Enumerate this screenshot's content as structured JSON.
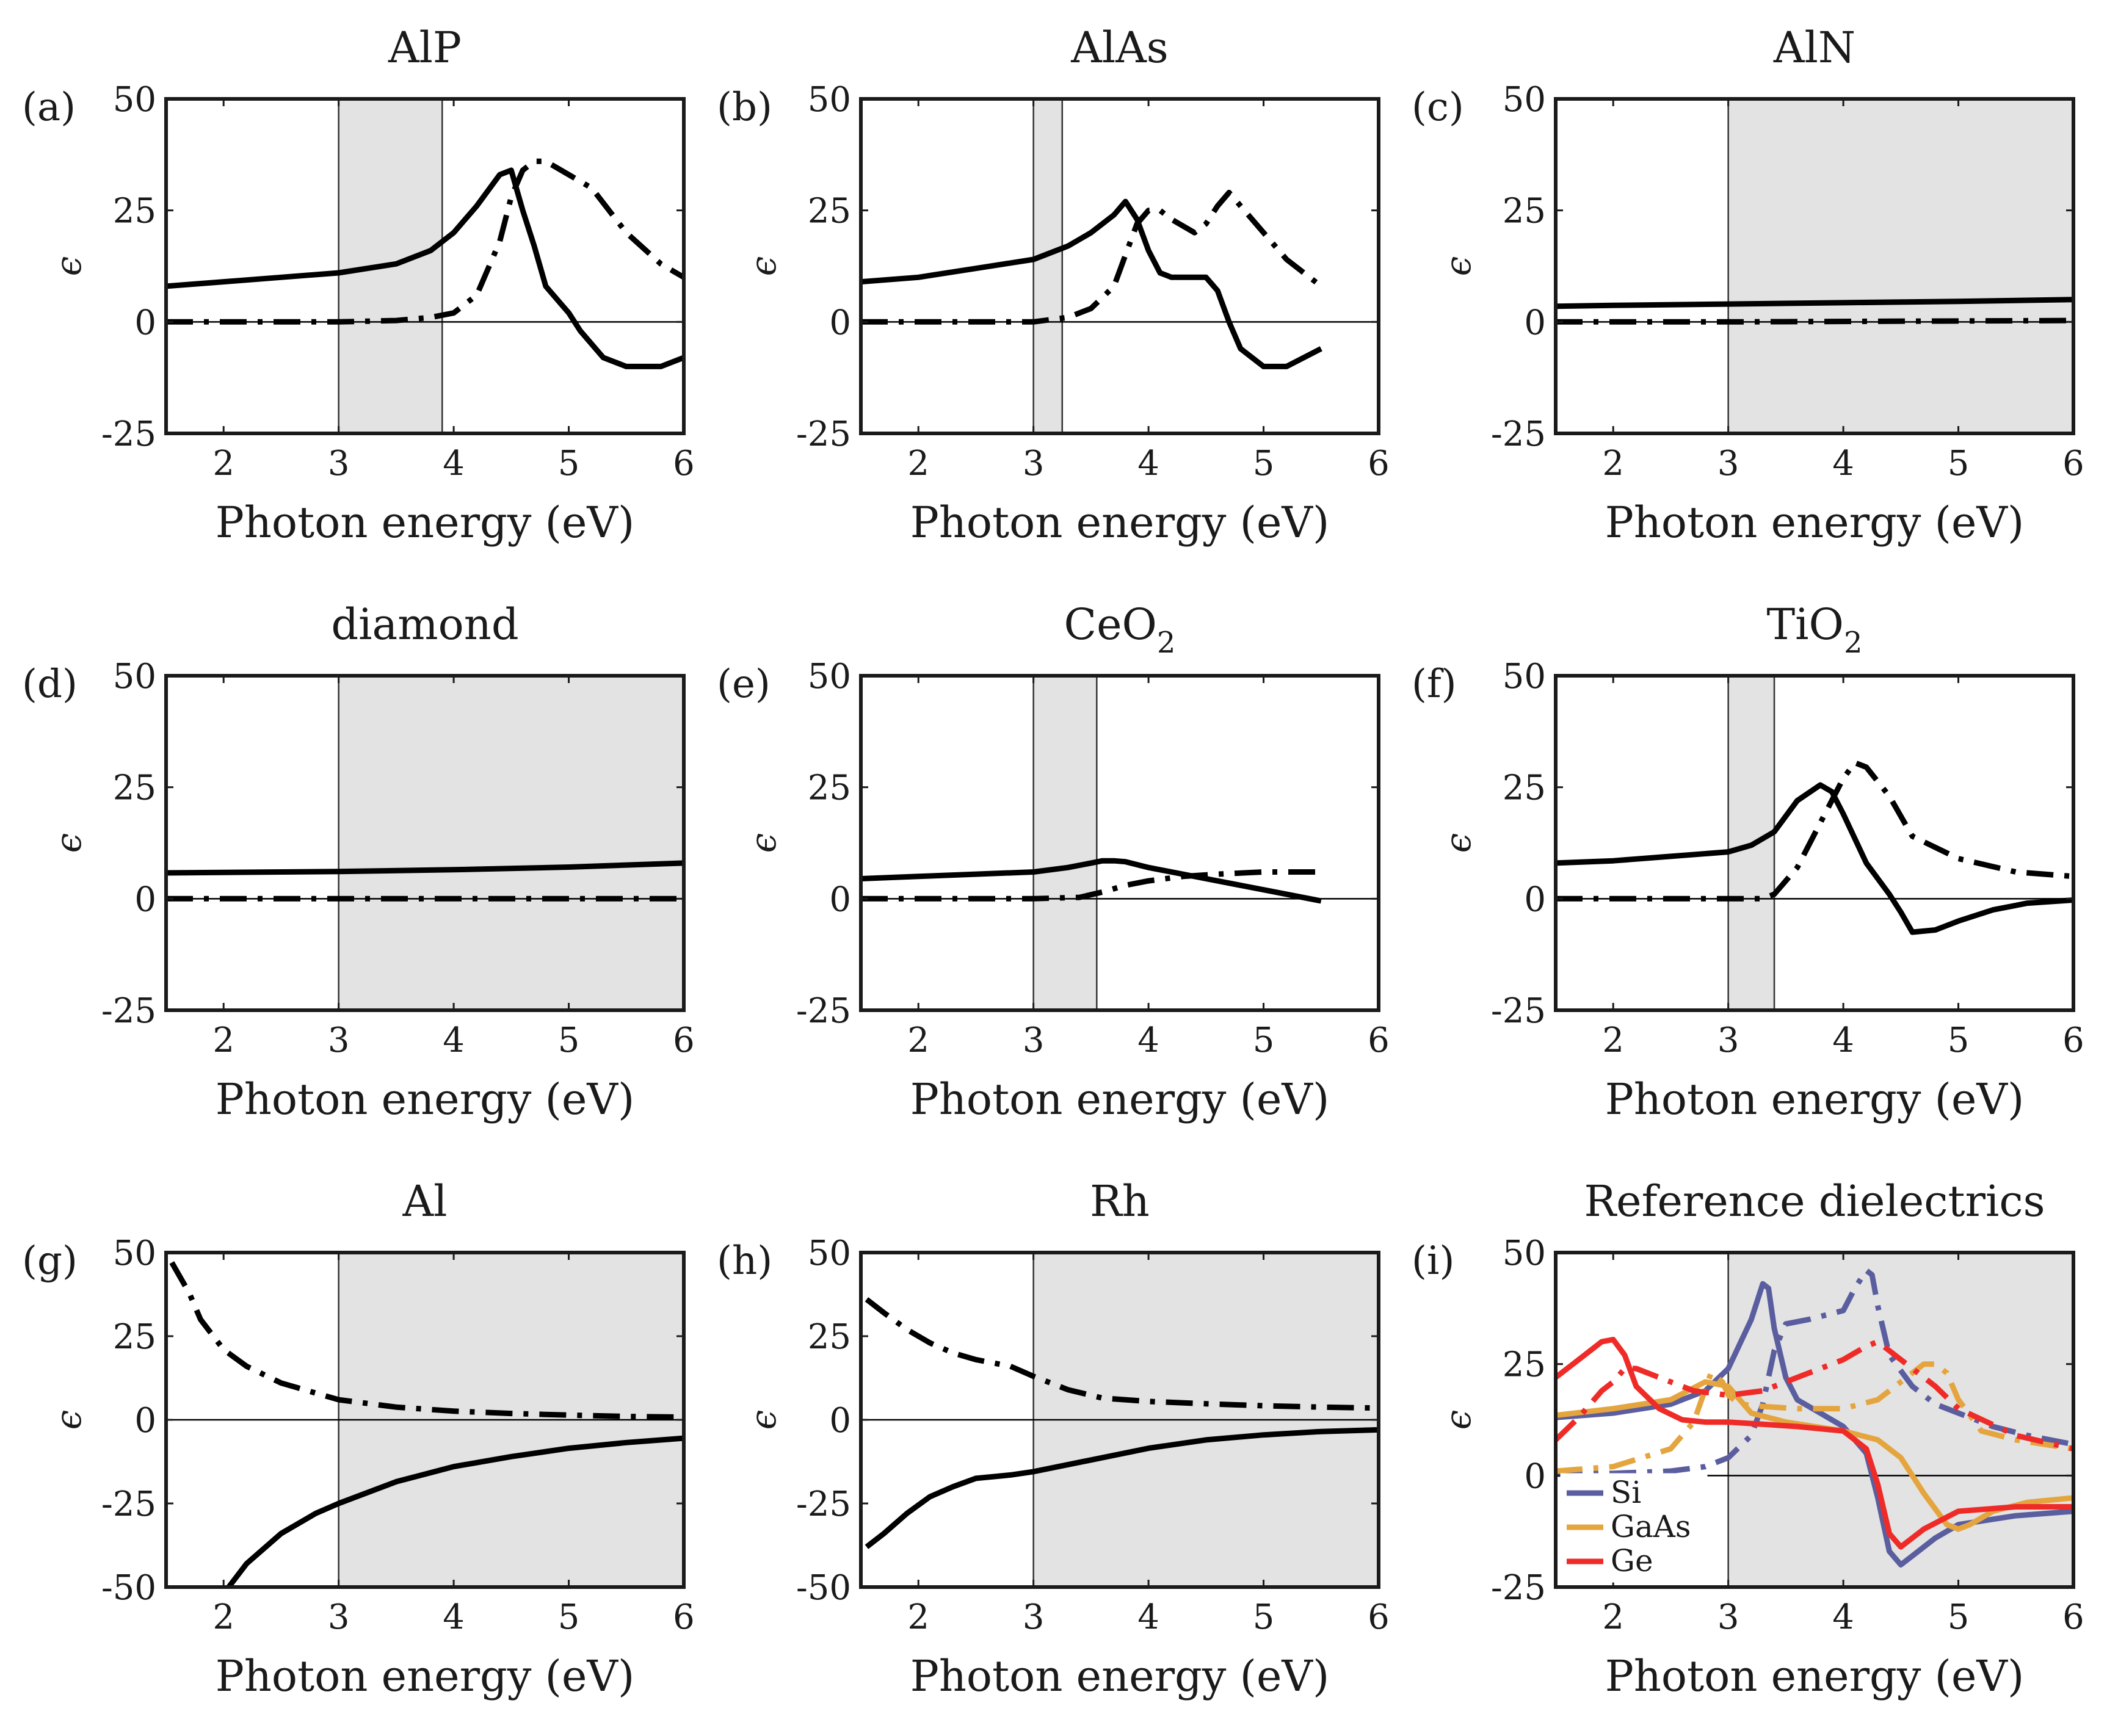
{
  "figure": {
    "x_axis_label": "Photon energy (eV)",
    "y_axis_label": "ϵ",
    "line_styles": {
      "real_part": "solid",
      "imag_part": "dash-dot"
    }
  },
  "chart_data": [
    {
      "type": "line",
      "panel_label": "(a)",
      "title": "AlP",
      "xlabel": "Photon energy (eV)",
      "ylabel": "ϵ",
      "xlim": [
        1.5,
        6
      ],
      "ylim": [
        -25,
        50
      ],
      "xticks": [
        "2",
        "3",
        "4",
        "5",
        "6"
      ],
      "yticks": [
        "-25",
        "0",
        "25",
        "50"
      ],
      "shaded": [
        3.0,
        3.9
      ],
      "series": [
        {
          "name": "real",
          "style": "solid",
          "color": "#000000",
          "x": [
            1.5,
            2.0,
            2.5,
            3.0,
            3.5,
            3.8,
            4.0,
            4.2,
            4.4,
            4.5,
            4.6,
            4.7,
            4.8,
            4.9,
            5.0,
            5.1,
            5.3,
            5.5,
            5.8,
            6.0
          ],
          "y": [
            8,
            9,
            10,
            11,
            13,
            16,
            20,
            26,
            33,
            34,
            25,
            17,
            8,
            5,
            2,
            -2,
            -8,
            -10,
            -10,
            -8
          ]
        },
        {
          "name": "imag",
          "style": "dashdot",
          "color": "#000000",
          "x": [
            1.5,
            2.0,
            2.5,
            3.0,
            3.5,
            3.8,
            4.0,
            4.2,
            4.4,
            4.5,
            4.6,
            4.7,
            4.8,
            5.0,
            5.2,
            5.5,
            5.8,
            6.0
          ],
          "y": [
            0,
            0,
            0,
            0,
            0.3,
            1,
            2,
            6,
            18,
            28,
            34,
            36,
            36,
            33,
            30,
            20,
            13,
            10
          ]
        }
      ]
    },
    {
      "type": "line",
      "panel_label": "(b)",
      "title": "AlAs",
      "xlabel": "Photon energy (eV)",
      "ylabel": "ϵ",
      "xlim": [
        1.5,
        6
      ],
      "ylim": [
        -25,
        50
      ],
      "xticks": [
        "2",
        "3",
        "4",
        "5",
        "6"
      ],
      "yticks": [
        "-25",
        "0",
        "25",
        "50"
      ],
      "shaded": [
        3.0,
        3.25
      ],
      "series": [
        {
          "name": "real",
          "style": "solid",
          "color": "#000000",
          "x": [
            1.5,
            2.0,
            2.5,
            3.0,
            3.3,
            3.5,
            3.7,
            3.8,
            3.9,
            4.0,
            4.1,
            4.2,
            4.3,
            4.4,
            4.5,
            4.6,
            4.7,
            4.8,
            5.0,
            5.2,
            5.5
          ],
          "y": [
            9,
            10,
            12,
            14,
            17,
            20,
            24,
            27,
            23,
            16,
            11,
            10,
            10,
            10,
            10,
            7,
            0,
            -6,
            -10,
            -10,
            -6
          ]
        },
        {
          "name": "imag",
          "style": "dashdot",
          "color": "#000000",
          "x": [
            1.5,
            2.0,
            2.5,
            3.0,
            3.3,
            3.5,
            3.7,
            3.8,
            3.9,
            4.0,
            4.1,
            4.2,
            4.4,
            4.5,
            4.6,
            4.7,
            4.8,
            5.0,
            5.2,
            5.5
          ],
          "y": [
            0,
            0,
            0,
            0,
            1,
            3,
            8,
            15,
            22,
            25,
            25,
            23,
            20,
            22,
            26,
            29,
            26,
            20,
            14,
            8
          ]
        }
      ]
    },
    {
      "type": "line",
      "panel_label": "(c)",
      "title": "AlN",
      "xlabel": "Photon energy (eV)",
      "ylabel": "ϵ",
      "xlim": [
        1.5,
        6
      ],
      "ylim": [
        -25,
        50
      ],
      "xticks": [
        "2",
        "3",
        "4",
        "5",
        "6"
      ],
      "yticks": [
        "-25",
        "0",
        "25",
        "50"
      ],
      "shaded": [
        3.0,
        6.0
      ],
      "series": [
        {
          "name": "real",
          "style": "solid",
          "color": "#000000",
          "x": [
            1.5,
            2.0,
            3.0,
            4.0,
            5.0,
            6.0
          ],
          "y": [
            3.5,
            3.7,
            4.0,
            4.3,
            4.6,
            5.0
          ]
        },
        {
          "name": "imag",
          "style": "dashdot",
          "color": "#000000",
          "x": [
            1.5,
            3.0,
            6.0
          ],
          "y": [
            0,
            0,
            0.3
          ]
        }
      ]
    },
    {
      "type": "line",
      "panel_label": "(d)",
      "title": "diamond",
      "xlabel": "Photon energy (eV)",
      "ylabel": "ϵ",
      "xlim": [
        1.5,
        6
      ],
      "ylim": [
        -25,
        50
      ],
      "xticks": [
        "2",
        "3",
        "4",
        "5",
        "6"
      ],
      "yticks": [
        "-25",
        "0",
        "25",
        "50"
      ],
      "shaded": [
        3.0,
        6.0
      ],
      "series": [
        {
          "name": "real",
          "style": "solid",
          "color": "#000000",
          "x": [
            1.5,
            2.0,
            3.0,
            4.0,
            5.0,
            6.0
          ],
          "y": [
            5.8,
            5.9,
            6.1,
            6.5,
            7.1,
            8.0
          ]
        },
        {
          "name": "imag",
          "style": "dashdot",
          "color": "#000000",
          "x": [
            1.5,
            3.0,
            6.0
          ],
          "y": [
            0,
            0,
            0
          ]
        }
      ]
    },
    {
      "type": "line",
      "panel_label": "(e)",
      "title": "CeO",
      "title_subscript": "2",
      "xlabel": "Photon energy (eV)",
      "ylabel": "ϵ",
      "xlim": [
        1.5,
        6
      ],
      "ylim": [
        -25,
        50
      ],
      "xticks": [
        "2",
        "3",
        "4",
        "5",
        "6"
      ],
      "yticks": [
        "-25",
        "0",
        "25",
        "50"
      ],
      "shaded": [
        3.0,
        3.55
      ],
      "series": [
        {
          "name": "real",
          "style": "solid",
          "color": "#000000",
          "x": [
            1.5,
            2.0,
            2.5,
            3.0,
            3.3,
            3.5,
            3.6,
            3.7,
            3.8,
            4.0,
            4.5,
            5.0,
            5.5
          ],
          "y": [
            4.5,
            5,
            5.5,
            6,
            7,
            8,
            8.5,
            8.5,
            8.3,
            7,
            4.5,
            2,
            -0.5
          ]
        },
        {
          "name": "imag",
          "style": "dashdot",
          "color": "#000000",
          "x": [
            1.5,
            2.0,
            3.0,
            3.4,
            3.6,
            3.8,
            4.0,
            4.3,
            4.6,
            5.0,
            5.5
          ],
          "y": [
            0,
            0,
            0,
            0.3,
            1.5,
            3,
            4,
            5,
            5.5,
            6,
            6
          ]
        }
      ]
    },
    {
      "type": "line",
      "panel_label": "(f)",
      "title": "TiO",
      "title_subscript": "2",
      "xlabel": "Photon energy (eV)",
      "ylabel": "ϵ",
      "xlim": [
        1.5,
        6
      ],
      "ylim": [
        -25,
        50
      ],
      "xticks": [
        "2",
        "3",
        "4",
        "5",
        "6"
      ],
      "yticks": [
        "-25",
        "0",
        "25",
        "50"
      ],
      "shaded": [
        3.0,
        3.4
      ],
      "series": [
        {
          "name": "real",
          "style": "solid",
          "color": "#000000",
          "x": [
            1.5,
            2.0,
            2.5,
            3.0,
            3.2,
            3.4,
            3.6,
            3.8,
            3.9,
            4.0,
            4.2,
            4.4,
            4.5,
            4.6,
            4.8,
            5.0,
            5.3,
            5.6,
            6.0
          ],
          "y": [
            8,
            8.5,
            9.5,
            10.5,
            12,
            15,
            22,
            25.5,
            24,
            19,
            8,
            1,
            -3,
            -7.5,
            -7,
            -5,
            -2.5,
            -1,
            -0.3
          ]
        },
        {
          "name": "imag",
          "style": "dashdot",
          "color": "#000000",
          "x": [
            1.5,
            2.0,
            3.0,
            3.3,
            3.4,
            3.6,
            3.8,
            4.0,
            4.1,
            4.2,
            4.4,
            4.6,
            5.0,
            5.5,
            6.0
          ],
          "y": [
            0,
            0,
            0,
            0,
            1,
            7,
            17,
            27,
            30.5,
            29.5,
            23,
            14,
            9,
            6,
            5
          ]
        }
      ]
    },
    {
      "type": "line",
      "panel_label": "(g)",
      "title": "Al",
      "xlabel": "Photon energy (eV)",
      "ylabel": "ϵ",
      "xlim": [
        1.5,
        6
      ],
      "ylim": [
        -50,
        50
      ],
      "xticks": [
        "2",
        "3",
        "4",
        "5",
        "6"
      ],
      "yticks": [
        "-50",
        "-25",
        "0",
        "25",
        "50"
      ],
      "shaded": [
        3.0,
        6.0
      ],
      "series": [
        {
          "name": "real",
          "style": "solid",
          "color": "#000000",
          "x": [
            2.0,
            2.2,
            2.5,
            2.8,
            3.0,
            3.5,
            4.0,
            4.5,
            5.0,
            5.5,
            6.0
          ],
          "y": [
            -52,
            -43,
            -34,
            -28,
            -25,
            -18.5,
            -14,
            -11,
            -8.5,
            -6.8,
            -5.5
          ]
        },
        {
          "name": "imag",
          "style": "dashdot",
          "color": "#000000",
          "x": [
            1.55,
            1.7,
            1.8,
            2.0,
            2.2,
            2.5,
            3.0,
            3.5,
            4.0,
            4.5,
            5.0,
            5.5,
            6.0
          ],
          "y": [
            47,
            38,
            30,
            21,
            16,
            11,
            6,
            3.8,
            2.6,
            1.9,
            1.4,
            1.0,
            0.8
          ]
        }
      ]
    },
    {
      "type": "line",
      "panel_label": "(h)",
      "title": "Rh",
      "xlabel": "Photon energy (eV)",
      "ylabel": "ϵ",
      "xlim": [
        1.5,
        6
      ],
      "ylim": [
        -50,
        50
      ],
      "xticks": [
        "2",
        "3",
        "4",
        "5",
        "6"
      ],
      "yticks": [
        "-50",
        "-25",
        "0",
        "25",
        "50"
      ],
      "shaded": [
        3.0,
        6.0
      ],
      "series": [
        {
          "name": "real",
          "style": "solid",
          "color": "#000000",
          "x": [
            1.55,
            1.7,
            1.9,
            2.1,
            2.3,
            2.5,
            2.8,
            3.0,
            3.5,
            4.0,
            4.5,
            5.0,
            5.5,
            6.0
          ],
          "y": [
            -38,
            -34,
            -28,
            -23,
            -20,
            -17.5,
            -16.5,
            -15.5,
            -12,
            -8.5,
            -6,
            -4.5,
            -3.5,
            -3
          ]
        },
        {
          "name": "imag",
          "style": "dashdot",
          "color": "#000000",
          "x": [
            1.55,
            1.7,
            1.9,
            2.1,
            2.3,
            2.5,
            2.8,
            3.0,
            3.3,
            3.6,
            4.0,
            4.5,
            5.0,
            5.5,
            6.0
          ],
          "y": [
            36,
            32,
            27,
            23,
            20,
            18,
            16,
            13,
            9,
            6.5,
            5.5,
            4.8,
            4.2,
            3.8,
            3.5
          ]
        }
      ]
    },
    {
      "type": "line",
      "panel_label": "(i)",
      "title": "Reference dielectrics",
      "xlabel": "Photon energy (eV)",
      "ylabel": "ϵ",
      "xlim": [
        1.5,
        6
      ],
      "ylim": [
        -25,
        50
      ],
      "xticks": [
        "2",
        "3",
        "4",
        "5",
        "6"
      ],
      "yticks": [
        "-25",
        "0",
        "25",
        "50"
      ],
      "shaded": [
        3.0,
        6.0
      ],
      "legend": [
        "Si",
        "GaAs",
        "Ge"
      ],
      "legend_position": "bottom-left",
      "series": [
        {
          "name": "Si real",
          "legend": "Si",
          "style": "solid",
          "color": "#5a5e9f",
          "x": [
            1.5,
            2.0,
            2.5,
            2.8,
            3.0,
            3.2,
            3.3,
            3.35,
            3.4,
            3.5,
            3.6,
            3.8,
            4.0,
            4.2,
            4.3,
            4.4,
            4.5,
            4.6,
            4.8,
            5.0,
            5.5,
            6.0
          ],
          "y": [
            13,
            14,
            16,
            19,
            24,
            35,
            43,
            42,
            33,
            22,
            17,
            14,
            11,
            5,
            -5,
            -17,
            -20,
            -18,
            -14,
            -11,
            -9,
            -8
          ]
        },
        {
          "name": "Si imag",
          "style": "dashdot",
          "color": "#5a5e9f",
          "x": [
            1.5,
            2.0,
            2.5,
            2.8,
            3.0,
            3.2,
            3.3,
            3.4,
            3.5,
            3.7,
            4.0,
            4.1,
            4.2,
            4.25,
            4.3,
            4.4,
            4.6,
            4.8,
            5.0,
            5.3,
            5.6,
            6.0
          ],
          "y": [
            0.3,
            0.5,
            1,
            2,
            4,
            9,
            16,
            28,
            34,
            35,
            37,
            42,
            46,
            45,
            38,
            27,
            20,
            16,
            14,
            11,
            9,
            7
          ]
        },
        {
          "name": "GaAs real",
          "legend": "GaAs",
          "style": "solid",
          "color": "#e5a53e",
          "x": [
            1.5,
            2.0,
            2.5,
            2.8,
            3.0,
            3.2,
            3.5,
            4.0,
            4.3,
            4.5,
            4.7,
            4.9,
            5.0,
            5.1,
            5.3,
            5.6,
            6.0
          ],
          "y": [
            13.5,
            15,
            17,
            21,
            20,
            14,
            12,
            10,
            8,
            4,
            -4,
            -11,
            -12,
            -11,
            -8,
            -6,
            -5
          ]
        },
        {
          "name": "GaAs imag",
          "style": "dashdot",
          "color": "#e5a53e",
          "x": [
            1.5,
            2.0,
            2.5,
            2.7,
            2.85,
            2.95,
            3.0,
            3.1,
            3.3,
            3.6,
            4.0,
            4.3,
            4.5,
            4.7,
            4.8,
            4.9,
            5.0,
            5.2,
            5.5,
            6.0
          ],
          "y": [
            1,
            2,
            6,
            12,
            23,
            21,
            18,
            16,
            15.5,
            15,
            15,
            17,
            21,
            25,
            25,
            23,
            17,
            10,
            8,
            6
          ]
        },
        {
          "name": "Ge real",
          "legend": "Ge",
          "style": "solid",
          "color": "#ef2b28",
          "x": [
            1.5,
            1.7,
            1.9,
            2.0,
            2.1,
            2.2,
            2.4,
            2.6,
            2.8,
            3.0,
            3.3,
            3.6,
            4.0,
            4.2,
            4.3,
            4.4,
            4.5,
            4.7,
            5.0,
            5.5,
            6.0
          ],
          "y": [
            22,
            26,
            30,
            30.5,
            27,
            20,
            15,
            12.5,
            12,
            12,
            11.5,
            11,
            10,
            6,
            -2,
            -13,
            -16,
            -12,
            -8,
            -7,
            -7
          ]
        },
        {
          "name": "Ge imag",
          "style": "dashdot",
          "color": "#ef2b28",
          "x": [
            1.5,
            1.7,
            1.9,
            2.0,
            2.1,
            2.2,
            2.4,
            2.7,
            3.0,
            3.3,
            3.6,
            4.0,
            4.2,
            4.3,
            4.5,
            4.8,
            5.0,
            5.5,
            6.0
          ],
          "y": [
            8,
            13,
            19,
            21,
            24,
            24,
            22,
            19,
            18,
            19,
            22,
            26,
            29,
            30,
            26,
            20,
            15,
            9,
            6
          ]
        }
      ]
    }
  ]
}
